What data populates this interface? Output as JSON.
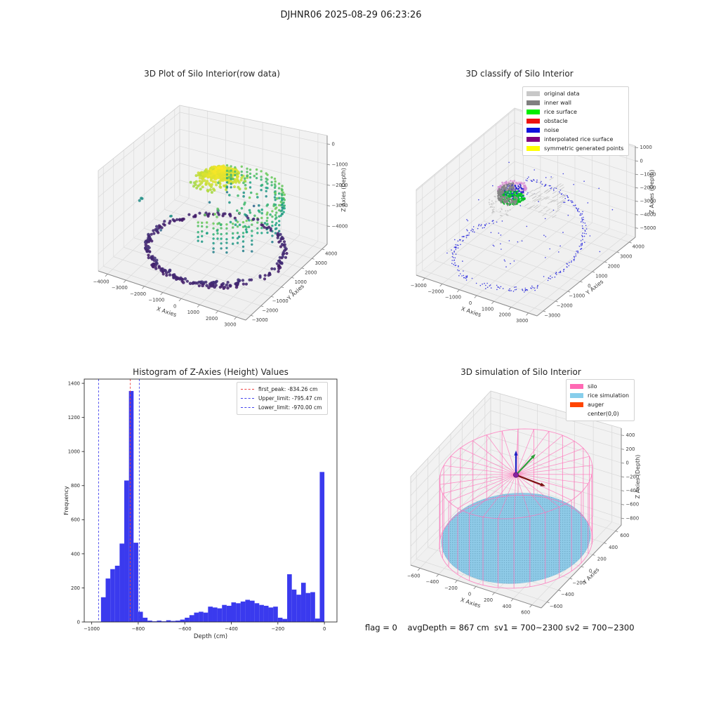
{
  "suptitle": "DJHNR06 2025-08-29 06:23:26",
  "footer": "flag = 0    avgDepth = 867 cm  sv1 = 700~2300 sv2 = 700~2300",
  "chart_data": [
    {
      "id": "p1",
      "type": "scatter3d",
      "title": "3D Plot of Silo Interior(row data)",
      "xlabel": "X Axies",
      "ylabel": "Y Axies",
      "zlabel": "Z Axies (Depth)",
      "xlim": [
        -4500,
        3500
      ],
      "ylim": [
        -3500,
        4500
      ],
      "zlim": [
        -4890,
        410
      ],
      "xticks": [
        -4000,
        -3000,
        -2000,
        -1000,
        0,
        1000,
        2000,
        3000
      ],
      "yticks": [
        -3000,
        -2000,
        -1000,
        0,
        1000,
        2000,
        3000,
        4000
      ],
      "zticks": [
        0,
        -1000,
        -2000,
        -3000,
        -4000
      ],
      "colormap": "viridis",
      "cmin": -4800,
      "cmax": -600,
      "clusters": [
        {
          "type": "blob",
          "n": 680,
          "cx": -350,
          "cy": 900,
          "rmax": 1750,
          "zTop": -680,
          "zDrop": 880,
          "zJit": 110,
          "size": 2.0
        },
        {
          "type": "wallStreaks",
          "n": 42,
          "cx": 0,
          "cy": 500,
          "r": 2950,
          "rJit": 90,
          "th0": -85,
          "th1": 115,
          "zTop": -1600,
          "step": 230,
          "kMin": 2,
          "kMax": 6,
          "zJit": 50,
          "size": 1.7
        },
        {
          "type": "ring",
          "n": 190,
          "cx": -250,
          "cy": 400,
          "r": 3250,
          "dr": 140,
          "th0": 0,
          "th1": 360,
          "z": -4330,
          "dz": 160,
          "size": 2.1
        },
        {
          "type": "ring",
          "n": 70,
          "cx": -250,
          "cy": 400,
          "r": 3300,
          "dr": 110,
          "th0": 190,
          "th1": 320,
          "z": -4300,
          "dz": 140,
          "size": 2.3
        },
        {
          "type": "diskDots",
          "n": 55,
          "cx": 0,
          "cy": 700,
          "rmin": 900,
          "rmax": 2600,
          "th0": -90,
          "th1": 130,
          "z": -2100,
          "dz": 550,
          "size": 1.8
        },
        {
          "type": "uniform",
          "n": 12,
          "x0": -3400,
          "x1": 2800,
          "y0": -2200,
          "y1": 3600,
          "z0": -3900,
          "z1": -1500,
          "size": 1.8
        },
        {
          "type": "ring",
          "n": 3,
          "cx": -4200,
          "cy": 100,
          "r": 60,
          "dr": 30,
          "th0": 0,
          "th1": 360,
          "z": -2700,
          "dz": 60,
          "size": 2.0
        }
      ]
    },
    {
      "id": "p2",
      "type": "scatter3d",
      "title": "3D classify of Silo Interior",
      "xlabel": "X Axies",
      "ylabel": "Y Axies",
      "zlabel": "Z Axies (Depth)",
      "xlim": [
        -3500,
        3500
      ],
      "ylim": [
        -3500,
        4500
      ],
      "zlim": [
        -5700,
        1100
      ],
      "xticks": [
        -3000,
        -2000,
        -1000,
        0,
        1000,
        2000,
        3000
      ],
      "yticks": [
        -3000,
        -2000,
        -1000,
        0,
        1000,
        2000,
        3000,
        4000
      ],
      "zticks": [
        1000,
        0,
        -1000,
        -2000,
        -3000,
        -4000,
        -5000
      ],
      "legend": [
        {
          "label": "original data",
          "color": "#c8c8c8"
        },
        {
          "label": "inner wall",
          "color": "#808080"
        },
        {
          "label": "rice surface",
          "color": "#00ee00"
        },
        {
          "label": "obstacle",
          "color": "#ee1111"
        },
        {
          "label": "noise",
          "color": "#1111dd"
        },
        {
          "label": "interpolated rice surface",
          "color": "#800080"
        },
        {
          "label": "symmetric generated points",
          "color": "#ffff00"
        }
      ],
      "clusters": [
        {
          "type": "ring",
          "n": 150,
          "cx": -1000,
          "cy": 800,
          "r": 620,
          "dr": 60,
          "th0": 0,
          "th1": 360,
          "z": -1250,
          "dz": 130,
          "size": 1.3,
          "color": "#d58fd5"
        },
        {
          "type": "diskDots",
          "n": 70,
          "cx": -1000,
          "cy": 800,
          "rmin": 0,
          "rmax": 560,
          "th0": 0,
          "th1": 360,
          "z": -1140,
          "dz": 70,
          "size": 1.1,
          "color": "#eebbd9"
        },
        {
          "type": "diskDots",
          "n": 170,
          "cx": -1000,
          "cy": 800,
          "rmin": 0,
          "rmax": 560,
          "th0": 0,
          "th1": 360,
          "z": -1500,
          "dz": 260,
          "size": 1.0,
          "color": "#1818cf"
        },
        {
          "type": "diskDots",
          "n": 140,
          "cx": -1000,
          "cy": 800,
          "rmin": 0,
          "rmax": 540,
          "th0": 0,
          "th1": 360,
          "z": -1880,
          "dz": 90,
          "size": 1.2,
          "color": "#00cc22"
        },
        {
          "type": "ring",
          "n": 55,
          "cx": -1000,
          "cy": 800,
          "r": 590,
          "dr": 40,
          "th0": 150,
          "th1": 390,
          "z": -1900,
          "dz": 60,
          "size": 1.2,
          "color": "#00bb22"
        },
        {
          "type": "shellArc",
          "n": 170,
          "cx": -1000,
          "cy": 800,
          "r": 645,
          "dr": 40,
          "th0": 110,
          "th1": 330,
          "z0": -1950,
          "z1": -1350,
          "color": "#848484",
          "size": 1.3
        },
        {
          "type": "ring",
          "n": 130,
          "cx": -200,
          "cy": 300,
          "r": 3150,
          "dr": 130,
          "th0": 140,
          "th1": 330,
          "z": -5450,
          "dz": 150,
          "size": 0.8,
          "color": "#2525dd"
        },
        {
          "type": "arcRise",
          "n": 130,
          "cx": -200,
          "cy": 300,
          "r": 3050,
          "dr": 110,
          "th0": -30,
          "th1": 120,
          "z0": -5200,
          "z1": -2400,
          "size": 0.8,
          "color": "#2525dd"
        },
        {
          "type": "uniform",
          "n": 60,
          "x0": -3200,
          "x1": 3200,
          "y0": -2800,
          "y1": 4200,
          "z0": -5300,
          "z1": -1500,
          "size": 0.8,
          "color": "#2525dd"
        },
        {
          "type": "dashes",
          "n": 55,
          "cx": -1000,
          "cy": 800,
          "rmin": 900,
          "rmax": 2500,
          "th0": -20,
          "th1": 80,
          "z": -2100,
          "dz": 260,
          "len": 7,
          "ang": -33,
          "color": "#cacaca"
        },
        {
          "type": "shellArc",
          "n": 35,
          "cx": -1000,
          "cy": 800,
          "r": 900,
          "dr": 220,
          "th0": 180,
          "th1": 300,
          "z0": -2600,
          "z1": -2100,
          "color": "#c6c6c6",
          "size": 1.0
        }
      ]
    },
    {
      "id": "p3",
      "type": "bar",
      "title": "Histogram of Z-Axies (Height) Values",
      "xlabel": "Depth (cm)",
      "ylabel": "Frequency",
      "bin_start": -1000,
      "bin_width": 20,
      "values": [
        0,
        2,
        145,
        255,
        310,
        330,
        460,
        830,
        1355,
        465,
        60,
        25,
        8,
        4,
        8,
        4,
        10,
        6,
        8,
        14,
        25,
        40,
        55,
        60,
        55,
        90,
        85,
        80,
        100,
        95,
        115,
        110,
        120,
        130,
        125,
        110,
        100,
        95,
        85,
        90,
        25,
        18,
        280,
        190,
        160,
        230,
        170,
        175,
        20,
        880
      ],
      "xticks": [
        -1000,
        -800,
        -600,
        -400,
        -200,
        0
      ],
      "yticks": [
        0,
        200,
        400,
        600,
        800,
        1000,
        1200,
        1400
      ],
      "xlim": [
        -1032,
        54
      ],
      "ylim": [
        0,
        1425
      ],
      "bar_color": "#3a3aee",
      "vlines": [
        {
          "x": -834.26,
          "color": "#ee4444",
          "label": "first_peak: -834.26 cm"
        },
        {
          "x": -795.47,
          "color": "#4444ee",
          "label": "Upper_limit: -795.47 cm"
        },
        {
          "x": -970.0,
          "color": "#4444ee",
          "label": "Lower_limit: -970.00 cm"
        }
      ]
    },
    {
      "id": "p4",
      "type": "scatter3d",
      "title": "3D simulation of Silo Interior",
      "xlabel": "X Axies",
      "ylabel": "Y Axies",
      "zlabel": "Z Axies (Depth)",
      "xlim": [
        -700,
        700
      ],
      "ylim": [
        -700,
        700
      ],
      "zlim": [
        -900,
        500
      ],
      "xticks": [
        -600,
        -400,
        -200,
        0,
        200,
        400,
        600
      ],
      "yticks": [
        -600,
        -400,
        -200,
        0,
        200,
        400,
        600
      ],
      "zticks": [
        400,
        200,
        0,
        -200,
        -400,
        -600,
        -800
      ],
      "legend": [
        {
          "label": "silo",
          "color": "#ff69b4"
        },
        {
          "label": "rice simulation",
          "color": "#87ceeb"
        },
        {
          "label": "auger",
          "color": "#ff4500"
        },
        {
          "label": "center(0,0)",
          "color": null
        }
      ],
      "silo": {
        "cx": 0,
        "cy": 0,
        "r": 700,
        "z_top": 150,
        "z_bottom": -850,
        "n_lines": 30,
        "color": "#ff74ba"
      },
      "rice": {
        "r": 680,
        "z": -800,
        "fill": "#8fcbe8",
        "dot_color": "#69a5c2"
      },
      "auger": {
        "origin": [
          0,
          0,
          140
        ],
        "arrows": [
          {
            "to": [
              0,
              0,
              450
            ],
            "color": "#1f1fc4"
          },
          {
            "to": [
              0,
              300,
              150
            ],
            "color": "#2f9e3a"
          },
          {
            "to": [
              280,
              0,
              100
            ],
            "color": "#7c1212"
          }
        ],
        "dot_color": "#8a22a0"
      }
    }
  ]
}
